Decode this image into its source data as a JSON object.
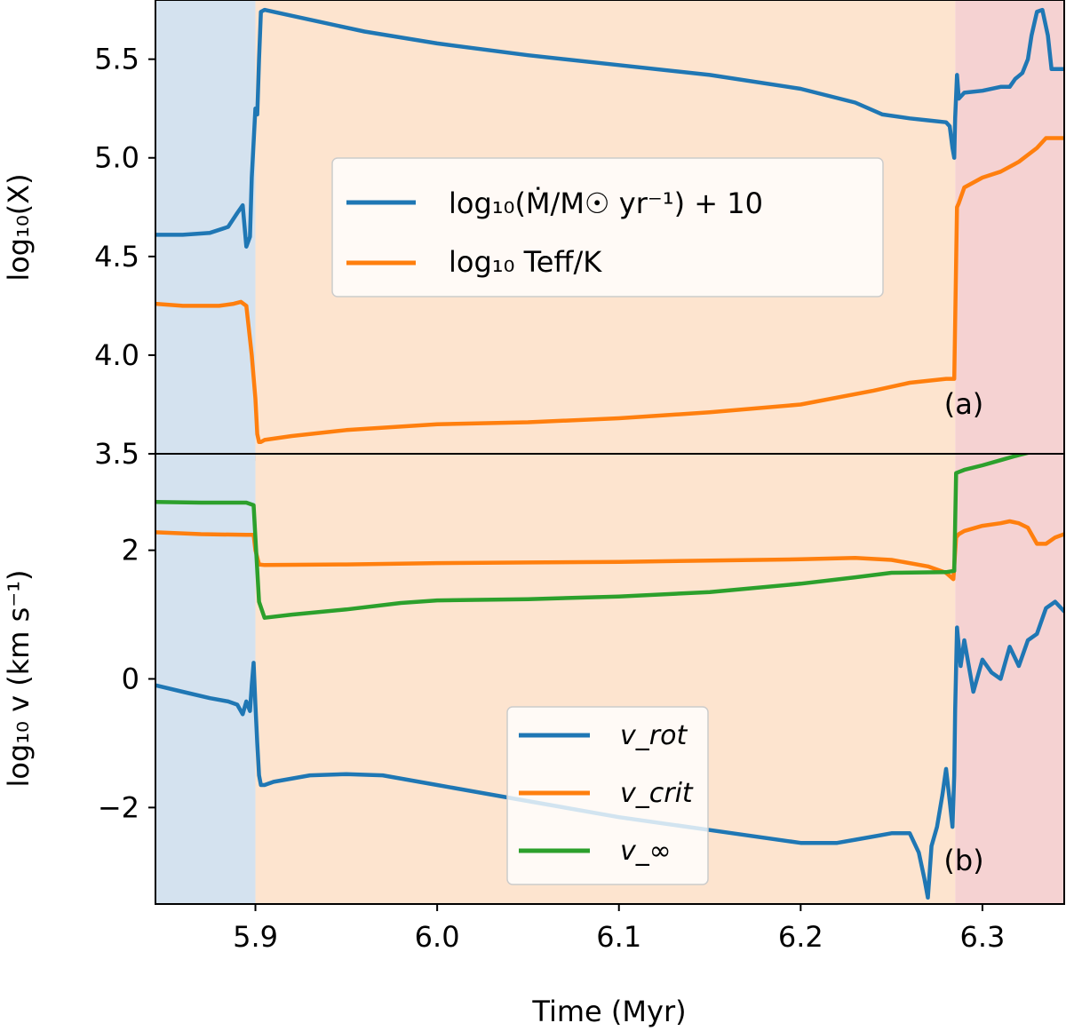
{
  "figure": {
    "xlabel": "Time (Myr)"
  },
  "chart_data": [
    {
      "type": "line",
      "panel_label": "(a)",
      "ylabel": "log₁₀(X)",
      "xlim": [
        5.845,
        6.345
      ],
      "ylim": [
        3.5,
        5.8
      ],
      "yticks": [
        3.5,
        4.0,
        4.5,
        5.0,
        5.5
      ],
      "ytick_labels": [
        "3.5",
        "4.0",
        "4.5",
        "5.0",
        "5.5"
      ],
      "xticks": [
        5.9,
        6.0,
        6.1,
        6.2,
        6.3
      ],
      "grid": false,
      "legend_position": "center",
      "shaded_regions": [
        {
          "x0": 5.845,
          "x1": 5.9,
          "color": "#d4e2ef"
        },
        {
          "x0": 5.9,
          "x1": 6.285,
          "color": "#fde4cf"
        },
        {
          "x0": 6.285,
          "x1": 6.345,
          "color": "#f5d2d2"
        }
      ],
      "series": [
        {
          "name": "log₁₀(Ṁ/M☉ yr⁻¹) + 10",
          "color": "#1f77b4",
          "x": [
            5.845,
            5.86,
            5.875,
            5.885,
            5.89,
            5.893,
            5.895,
            5.897,
            5.898,
            5.9,
            5.901,
            5.902,
            5.903,
            5.905,
            5.91,
            5.93,
            5.96,
            6.0,
            6.05,
            6.1,
            6.15,
            6.2,
            6.23,
            6.245,
            6.26,
            6.27,
            6.28,
            6.282,
            6.2835,
            6.2845,
            6.285,
            6.286,
            6.287,
            6.29,
            6.3,
            6.31,
            6.315,
            6.318,
            6.322,
            6.325,
            6.327,
            6.33,
            6.333,
            6.336,
            6.338,
            6.34,
            6.345
          ],
          "y": [
            4.61,
            4.61,
            4.62,
            4.65,
            4.72,
            4.76,
            4.55,
            4.6,
            4.9,
            5.25,
            5.22,
            5.5,
            5.74,
            5.75,
            5.74,
            5.7,
            5.64,
            5.58,
            5.52,
            5.47,
            5.42,
            5.35,
            5.28,
            5.22,
            5.2,
            5.19,
            5.18,
            5.16,
            5.05,
            5.0,
            5.2,
            5.42,
            5.3,
            5.33,
            5.34,
            5.36,
            5.36,
            5.4,
            5.43,
            5.5,
            5.62,
            5.74,
            5.75,
            5.62,
            5.45,
            5.45,
            5.45
          ]
        },
        {
          "name": "log₁₀ Teff/K",
          "color": "#ff7f0e",
          "x": [
            5.845,
            5.86,
            5.88,
            5.888,
            5.892,
            5.895,
            5.898,
            5.9,
            5.901,
            5.902,
            5.903,
            5.905,
            5.92,
            5.95,
            6.0,
            6.05,
            6.1,
            6.15,
            6.2,
            6.24,
            6.26,
            6.28,
            6.2845,
            6.286,
            6.287,
            6.29,
            6.3,
            6.31,
            6.32,
            6.33,
            6.335,
            6.345
          ],
          "y": [
            4.26,
            4.25,
            4.25,
            4.26,
            4.27,
            4.25,
            4.0,
            3.78,
            3.6,
            3.56,
            3.56,
            3.57,
            3.59,
            3.62,
            3.65,
            3.66,
            3.68,
            3.71,
            3.75,
            3.82,
            3.86,
            3.88,
            3.88,
            4.75,
            4.77,
            4.85,
            4.9,
            4.93,
            4.98,
            5.05,
            5.1,
            5.1
          ]
        }
      ]
    },
    {
      "type": "line",
      "panel_label": "(b)",
      "ylabel": "log₁₀ v (km s⁻¹)",
      "xlim": [
        5.845,
        6.345
      ],
      "ylim": [
        -3.5,
        3.5
      ],
      "yticks": [
        -2,
        0,
        2
      ],
      "ytick_labels": [
        "−2",
        "0",
        "2"
      ],
      "xticks": [
        5.9,
        6.0,
        6.1,
        6.2,
        6.3
      ],
      "xtick_labels": [
        "5.9",
        "6.0",
        "6.1",
        "6.2",
        "6.3"
      ],
      "grid": false,
      "legend_position": "lower center",
      "shaded_regions": [
        {
          "x0": 5.845,
          "x1": 5.9,
          "color": "#d4e2ef"
        },
        {
          "x0": 5.9,
          "x1": 6.285,
          "color": "#fde4cf"
        },
        {
          "x0": 6.285,
          "x1": 6.345,
          "color": "#f5d2d2"
        }
      ],
      "series": [
        {
          "name": "v_rot",
          "color": "#1f77b4",
          "x": [
            5.845,
            5.86,
            5.875,
            5.885,
            5.89,
            5.893,
            5.895,
            5.897,
            5.898,
            5.899,
            5.9,
            5.901,
            5.902,
            5.903,
            5.905,
            5.91,
            5.93,
            5.95,
            5.97,
            6.0,
            6.05,
            6.1,
            6.15,
            6.2,
            6.22,
            6.23,
            6.24,
            6.25,
            6.26,
            6.265,
            6.268,
            6.27,
            6.272,
            6.275,
            6.278,
            6.28,
            6.282,
            6.2835,
            6.2845,
            6.285,
            6.286,
            6.288,
            6.29,
            6.295,
            6.3,
            6.305,
            6.31,
            6.315,
            6.32,
            6.325,
            6.33,
            6.335,
            6.34,
            6.345
          ],
          "y": [
            -0.1,
            -0.2,
            -0.3,
            -0.35,
            -0.4,
            -0.55,
            -0.35,
            -0.5,
            -0.1,
            0.25,
            -0.4,
            -1.0,
            -1.5,
            -1.65,
            -1.65,
            -1.6,
            -1.5,
            -1.48,
            -1.5,
            -1.65,
            -1.9,
            -2.15,
            -2.35,
            -2.55,
            -2.55,
            -2.5,
            -2.45,
            -2.4,
            -2.4,
            -2.7,
            -3.1,
            -3.4,
            -2.6,
            -2.3,
            -1.8,
            -1.4,
            -1.9,
            -2.3,
            -1.5,
            -0.5,
            0.8,
            0.2,
            0.6,
            -0.2,
            0.3,
            0.1,
            0.0,
            0.5,
            0.2,
            0.6,
            0.7,
            1.1,
            1.2,
            1.05
          ]
        },
        {
          "name": "v_crit",
          "color": "#ff7f0e",
          "x": [
            5.845,
            5.87,
            5.895,
            5.899,
            5.9,
            5.902,
            5.905,
            5.95,
            6.0,
            6.05,
            6.1,
            6.15,
            6.2,
            6.23,
            6.25,
            6.27,
            6.28,
            6.284,
            6.2855,
            6.287,
            6.29,
            6.3,
            6.31,
            6.315,
            6.32,
            6.325,
            6.33,
            6.335,
            6.34,
            6.345
          ],
          "y": [
            2.28,
            2.25,
            2.24,
            2.24,
            2.0,
            1.78,
            1.77,
            1.78,
            1.8,
            1.81,
            1.82,
            1.84,
            1.86,
            1.88,
            1.85,
            1.75,
            1.65,
            1.55,
            2.2,
            2.25,
            2.3,
            2.38,
            2.42,
            2.45,
            2.42,
            2.35,
            2.1,
            2.1,
            2.2,
            2.25
          ]
        },
        {
          "name": "v_∞",
          "color": "#2ca02c",
          "x": [
            5.845,
            5.87,
            5.895,
            5.899,
            5.9,
            5.902,
            5.905,
            5.92,
            5.95,
            5.98,
            6.0,
            6.05,
            6.1,
            6.15,
            6.2,
            6.23,
            6.25,
            6.28,
            6.2845,
            6.2855,
            6.29,
            6.3,
            6.31,
            6.32,
            6.33,
            6.335,
            6.345
          ],
          "y": [
            2.75,
            2.74,
            2.74,
            2.7,
            2.2,
            1.2,
            0.95,
            1.0,
            1.08,
            1.18,
            1.22,
            1.24,
            1.28,
            1.35,
            1.48,
            1.58,
            1.65,
            1.66,
            1.68,
            3.2,
            3.25,
            3.32,
            3.4,
            3.48,
            3.55,
            3.7,
            3.7
          ]
        }
      ]
    }
  ]
}
